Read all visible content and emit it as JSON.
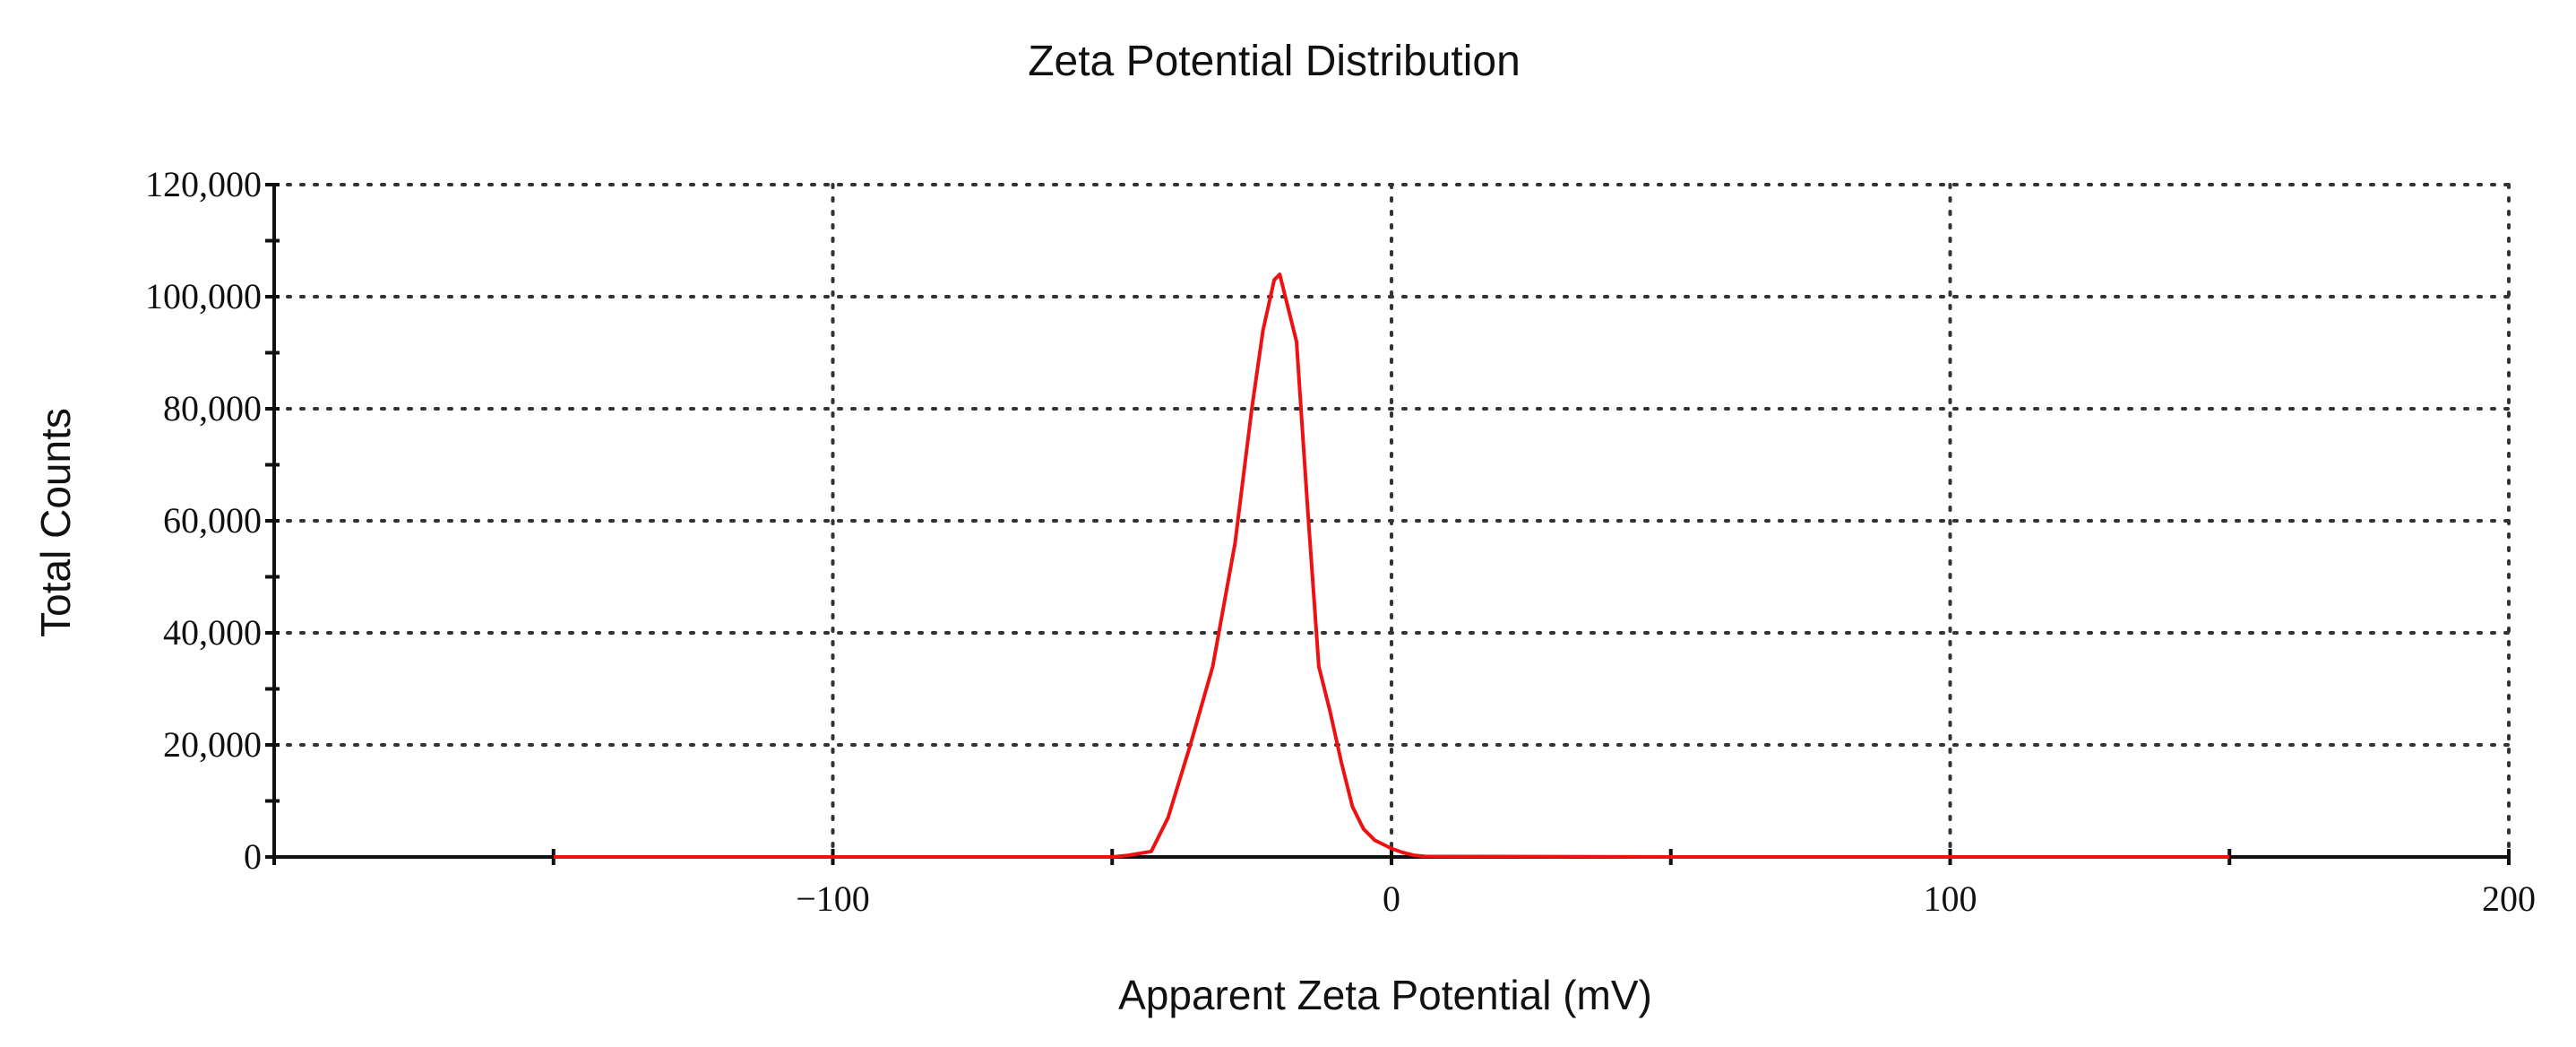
{
  "chart_data": {
    "type": "line",
    "title": "Zeta Potential Distribution",
    "xlabel": "Apparent Zeta Potential (mV)",
    "ylabel": "Total Counts",
    "xlim": [
      -200,
      200
    ],
    "ylim": [
      0,
      120000
    ],
    "x_ticks": [
      -200,
      -150,
      -100,
      -50,
      0,
      50,
      100,
      150,
      200
    ],
    "x_tick_labels": [
      {
        "value": -100,
        "label": "−100"
      },
      {
        "value": 0,
        "label": "0"
      },
      {
        "value": 100,
        "label": "100"
      },
      {
        "value": 200,
        "label": "200"
      }
    ],
    "y_ticks": [
      0,
      10000,
      20000,
      30000,
      40000,
      50000,
      60000,
      70000,
      80000,
      90000,
      100000,
      110000,
      120000
    ],
    "y_tick_labels": [
      {
        "value": 0,
        "label": "0"
      },
      {
        "value": 20000,
        "label": "20,000"
      },
      {
        "value": 40000,
        "label": "40,000"
      },
      {
        "value": 60000,
        "label": "60,000"
      },
      {
        "value": 80000,
        "label": "80,000"
      },
      {
        "value": 100000,
        "label": "100,000"
      },
      {
        "value": 120000,
        "label": "120,000"
      }
    ],
    "grid": true,
    "baseline": {
      "x": [
        -200,
        200
      ],
      "y": 0,
      "color": "#111111"
    },
    "series": [
      {
        "name": "Total Counts",
        "color": "#ee1111",
        "x": [
          -150,
          -100,
          -50,
          -47,
          -43,
          -40,
          -36,
          -32,
          -28,
          -25,
          -23,
          -21,
          -20,
          -19,
          -17,
          -15,
          -13,
          -11,
          -9,
          -7,
          -5,
          -3,
          -1,
          0,
          2,
          4,
          6,
          50,
          100,
          150
        ],
        "y": [
          0,
          0,
          0,
          300,
          1000,
          7000,
          20000,
          34000,
          56000,
          80000,
          94000,
          103000,
          104000,
          100000,
          92000,
          62000,
          34000,
          26000,
          17000,
          9000,
          5000,
          3000,
          2000,
          1500,
          800,
          300,
          100,
          0,
          0,
          0
        ]
      }
    ]
  }
}
